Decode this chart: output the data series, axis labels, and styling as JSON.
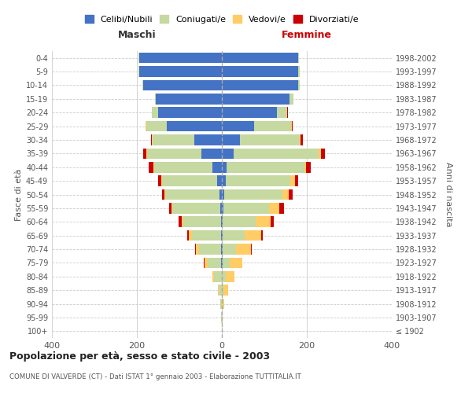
{
  "age_groups": [
    "100+",
    "95-99",
    "90-94",
    "85-89",
    "80-84",
    "75-79",
    "70-74",
    "65-69",
    "60-64",
    "55-59",
    "50-54",
    "45-49",
    "40-44",
    "35-39",
    "30-34",
    "25-29",
    "20-24",
    "15-19",
    "10-14",
    "5-9",
    "0-4"
  ],
  "birth_years": [
    "≤ 1902",
    "1903-1907",
    "1908-1912",
    "1913-1917",
    "1918-1922",
    "1923-1927",
    "1928-1932",
    "1933-1937",
    "1938-1942",
    "1943-1947",
    "1948-1952",
    "1953-1957",
    "1958-1962",
    "1963-1967",
    "1968-1972",
    "1973-1977",
    "1978-1982",
    "1983-1987",
    "1988-1992",
    "1993-1997",
    "1998-2002"
  ],
  "male": {
    "celibi": [
      0,
      0,
      0,
      0,
      0,
      1,
      1,
      2,
      2,
      4,
      6,
      12,
      22,
      48,
      65,
      130,
      150,
      155,
      185,
      195,
      195
    ],
    "coniugati": [
      0,
      1,
      3,
      8,
      18,
      32,
      52,
      68,
      88,
      112,
      128,
      128,
      138,
      128,
      98,
      48,
      14,
      3,
      2,
      2,
      2
    ],
    "vedovi": [
      0,
      0,
      0,
      2,
      4,
      8,
      8,
      8,
      5,
      3,
      2,
      2,
      2,
      2,
      1,
      1,
      0,
      0,
      0,
      0,
      0
    ],
    "divorziati": [
      0,
      0,
      0,
      0,
      0,
      1,
      2,
      3,
      7,
      5,
      5,
      8,
      10,
      8,
      3,
      1,
      1,
      0,
      0,
      0,
      0
    ]
  },
  "female": {
    "nubili": [
      0,
      0,
      0,
      0,
      0,
      1,
      1,
      1,
      2,
      3,
      5,
      10,
      12,
      28,
      42,
      75,
      130,
      160,
      180,
      180,
      180
    ],
    "coniugate": [
      0,
      1,
      2,
      4,
      10,
      18,
      32,
      52,
      78,
      108,
      138,
      152,
      182,
      200,
      142,
      88,
      24,
      8,
      3,
      3,
      2
    ],
    "vedove": [
      0,
      1,
      3,
      10,
      20,
      30,
      35,
      40,
      35,
      25,
      15,
      10,
      5,
      5,
      2,
      1,
      0,
      0,
      0,
      0,
      0
    ],
    "divorziate": [
      0,
      0,
      0,
      0,
      0,
      0,
      2,
      3,
      8,
      10,
      8,
      8,
      10,
      10,
      5,
      2,
      1,
      0,
      0,
      0,
      0
    ]
  },
  "color_celibi": "#4472C4",
  "color_coniugati": "#C5D9A0",
  "color_vedovi": "#FFCC66",
  "color_divorziati": "#CC0000",
  "xlim": 400,
  "title": "Popolazione per età, sesso e stato civile - 2003",
  "subtitle": "COMUNE DI VALVERDE (CT) - Dati ISTAT 1° gennaio 2003 - Elaborazione TUTTITALIA.IT",
  "ylabel_left": "Fasce di età",
  "ylabel_right": "Anni di nascita",
  "xlabel_left": "Maschi",
  "xlabel_right": "Femmine",
  "legend_labels": [
    "Celibi/Nubili",
    "Coniugati/e",
    "Vedovi/e",
    "Divorziati/e"
  ],
  "bg_color": "#ffffff",
  "grid_color": "#cccccc",
  "maschi_color": "#333333",
  "femmine_color": "#cc0000"
}
